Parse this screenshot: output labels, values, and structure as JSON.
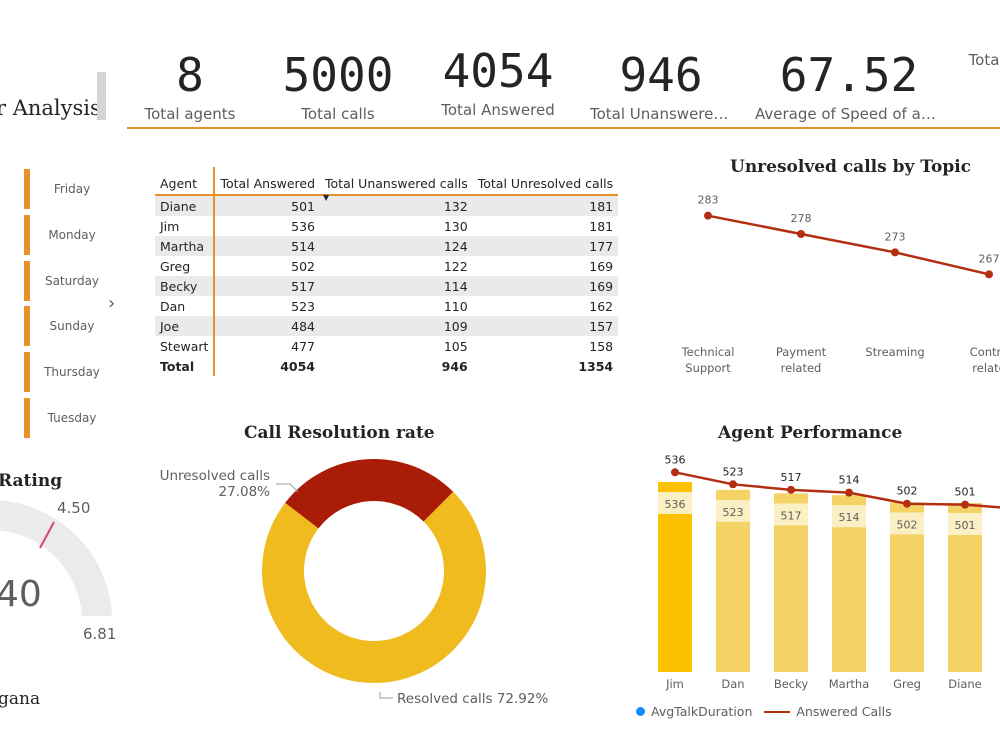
{
  "header": {
    "title": "r Analysis"
  },
  "kpis": [
    {
      "value": "8",
      "label": "Total agents"
    },
    {
      "value": "5000",
      "label": "Total calls"
    },
    {
      "value": "4054",
      "label": "Total Answered"
    },
    {
      "value": "946",
      "label": "Total Unanswered…"
    },
    {
      "value": "67.52",
      "label": "Average of Speed of ans…"
    },
    {
      "value": "",
      "label": "Tota"
    }
  ],
  "slicer": {
    "items": [
      "Friday",
      "Monday",
      "Saturday",
      "Sunday",
      "Thursday",
      "Tuesday"
    ],
    "nav_glyph": "›"
  },
  "table": {
    "headers": [
      "Agent",
      "Total Answered",
      "Total Unanswered calls",
      "Total Unresolved calls"
    ],
    "rows": [
      [
        "Diane",
        "501",
        "132",
        "181"
      ],
      [
        "Jim",
        "536",
        "130",
        "181"
      ],
      [
        "Martha",
        "514",
        "124",
        "177"
      ],
      [
        "Greg",
        "502",
        "122",
        "169"
      ],
      [
        "Becky",
        "517",
        "114",
        "169"
      ],
      [
        "Dan",
        "523",
        "110",
        "162"
      ],
      [
        "Joe",
        "484",
        "109",
        "157"
      ],
      [
        "Stewart",
        "477",
        "105",
        "158"
      ]
    ],
    "total": [
      "Total",
      "4054",
      "946",
      "1354"
    ]
  },
  "gauge": {
    "title": "Rating",
    "max_label": "4.50",
    "min_label": "6.81",
    "value_label": "40",
    "footer": "gana"
  },
  "chart_data": [
    {
      "type": "line",
      "title": "Unresolved calls by Topic",
      "categories": [
        "Technical Support",
        "Payment related",
        "Streaming",
        "Contra relate"
      ],
      "category_lines": [
        [
          "Technical",
          "Support"
        ],
        [
          "Payment",
          "related"
        ],
        [
          "Streaming"
        ],
        [
          "Contra",
          "relate"
        ]
      ],
      "values": [
        283,
        278,
        273,
        267
      ],
      "color": "#b32f12"
    },
    {
      "type": "pie",
      "title": "Call Resolution rate",
      "slices": [
        {
          "name": "Resolved calls",
          "value": 72.92,
          "label": "Resolved calls 72.92%",
          "color": "#f0bb1f"
        },
        {
          "name": "Unresolved calls",
          "value": 27.08,
          "label_line1": "Unresolved calls",
          "label_line2": "27.08%",
          "color": "#a81c08"
        }
      ]
    },
    {
      "type": "bar",
      "title": "Agent Performance",
      "categories": [
        "Jim",
        "Dan",
        "Becky",
        "Martha",
        "Greg",
        "Diane"
      ],
      "values": [
        536,
        523,
        517,
        514,
        502,
        501
      ],
      "line_values": [
        536,
        523,
        517,
        514,
        502,
        501
      ],
      "legend": [
        "AvgTalkDuration",
        "Answered Calls"
      ],
      "bar_color": "#f4d266",
      "highlight_color": "#fcc200",
      "line_color": "#b32f12"
    }
  ]
}
